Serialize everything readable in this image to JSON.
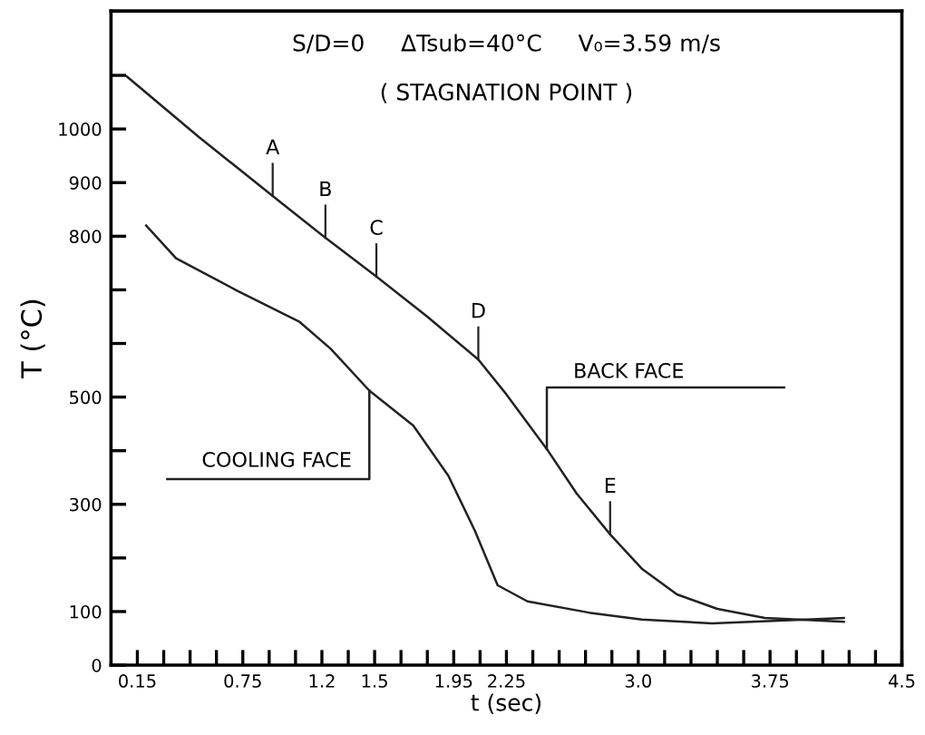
{
  "chart_data": {
    "type": "line",
    "title": "S/D=0     ΔTsub=40°C     V₀=3.59 m/s",
    "subtitle": "( STAGNATION POINT )",
    "xlabel": "t (sec)",
    "ylabel": "T (°C)",
    "x": [
      0.09,
      0.5,
      0.92,
      1.22,
      1.51,
      1.8,
      2.09,
      2.25,
      2.48,
      2.65,
      2.84,
      3.02,
      3.22,
      3.45,
      3.72,
      4.17
    ],
    "series": [
      {
        "color": "#222222",
        "values": [
          1098,
          985,
          875,
          797,
          725,
          650,
          570,
          505,
          403,
          320,
          244,
          180,
          132,
          105,
          88,
          81
        ]
      },
      {
        "color": "#222222",
        "x": [
          0.2,
          0.37,
          0.72,
          1.07,
          1.25,
          1.47,
          1.72,
          1.92,
          2.07,
          2.2,
          2.37,
          2.72,
          3.02,
          3.42,
          4.17
        ],
        "values": [
          820,
          759,
          698,
          641,
          590,
          512,
          447,
          353,
          251,
          149,
          119,
          98,
          85,
          78,
          88
        ]
      }
    ],
    "annotations": [
      {
        "text": "A",
        "x": 0.92,
        "y": 875
      },
      {
        "text": "B",
        "x": 1.22,
        "y": 797
      },
      {
        "text": "C",
        "x": 1.51,
        "y": 725
      },
      {
        "text": "D",
        "x": 2.09,
        "y": 570
      },
      {
        "text": "E",
        "x": 2.84,
        "y": 244
      },
      {
        "text": "BACK FACE",
        "x": 2.48,
        "y": 403
      },
      {
        "text": "COOLING FACE",
        "x": 1.47,
        "y": 512
      }
    ],
    "xlim": [
      0,
      4.5
    ],
    "ylim": [
      0,
      1220
    ],
    "xticks": [
      {
        "value": 0.15,
        "label": "0.15"
      },
      {
        "value": 0.3,
        "label": null
      },
      {
        "value": 0.45,
        "label": null
      },
      {
        "value": 0.6,
        "label": null
      },
      {
        "value": 0.75,
        "label": "0.75"
      },
      {
        "value": 0.9,
        "label": null
      },
      {
        "value": 1.05,
        "label": null
      },
      {
        "value": 1.2,
        "label": "1.2"
      },
      {
        "value": 1.35,
        "label": null
      },
      {
        "value": 1.5,
        "label": "1.5"
      },
      {
        "value": 1.65,
        "label": null
      },
      {
        "value": 1.8,
        "label": null
      },
      {
        "value": 1.95,
        "label": "1.95"
      },
      {
        "value": 2.1,
        "label": null
      },
      {
        "value": 2.25,
        "label": "2.25"
      },
      {
        "value": 2.4,
        "label": null
      },
      {
        "value": 2.55,
        "label": null
      },
      {
        "value": 2.7,
        "label": null
      },
      {
        "value": 2.85,
        "label": null
      },
      {
        "value": 3.0,
        "label": "3.0"
      },
      {
        "value": 3.15,
        "label": null
      },
      {
        "value": 3.3,
        "label": null
      },
      {
        "value": 3.45,
        "label": null
      },
      {
        "value": 3.6,
        "label": null
      },
      {
        "value": 3.75,
        "label": "3.75"
      },
      {
        "value": 3.9,
        "label": null
      },
      {
        "value": 4.05,
        "label": null
      },
      {
        "value": 4.2,
        "label": null
      },
      {
        "value": 4.35,
        "label": null
      },
      {
        "value": 4.5,
        "label": "4.5"
      }
    ],
    "yticks": [
      0,
      100,
      {
        "value": 200,
        "label": null
      },
      300,
      {
        "value": 400,
        "label": null
      },
      500,
      {
        "value": 600,
        "label": null
      },
      {
        "value": 700,
        "label": null
      },
      800,
      900,
      1000,
      {
        "value": 1100,
        "label": null
      }
    ],
    "grid": false,
    "legend": false,
    "marker": "none",
    "line_style": "solid"
  }
}
